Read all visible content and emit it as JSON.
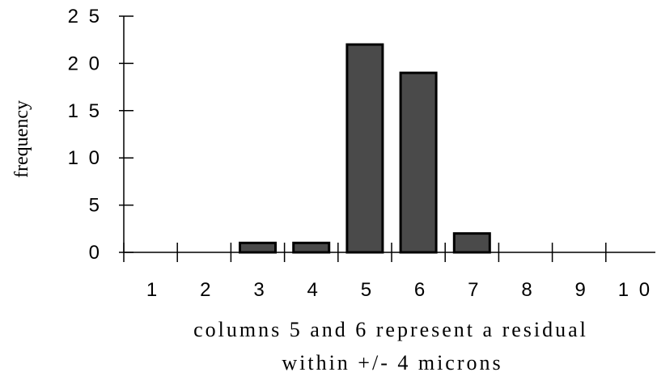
{
  "chart_data": {
    "type": "bar",
    "categories": [
      "1",
      "2",
      "3",
      "4",
      "5",
      "6",
      "7",
      "8",
      "9",
      "10"
    ],
    "values": [
      0,
      0,
      1,
      1,
      22,
      19,
      2,
      0,
      0,
      0
    ],
    "ylabel": "frequency",
    "xlabel_lines": [
      "columns 5 and 6 represent a residual",
      "within +/- 4 microns"
    ],
    "ylim": [
      0,
      25
    ],
    "yticks": [
      "0",
      "5",
      "1 0",
      "1 5",
      "2 0",
      "2 5"
    ],
    "xtick_labels": [
      "1",
      "2",
      "3",
      "4",
      "5",
      "6",
      "7",
      "8",
      "9",
      "1 0"
    ],
    "grid": false,
    "colors": {
      "bar_fill": "#4a4a4a",
      "bar_stroke": "#000000"
    }
  }
}
